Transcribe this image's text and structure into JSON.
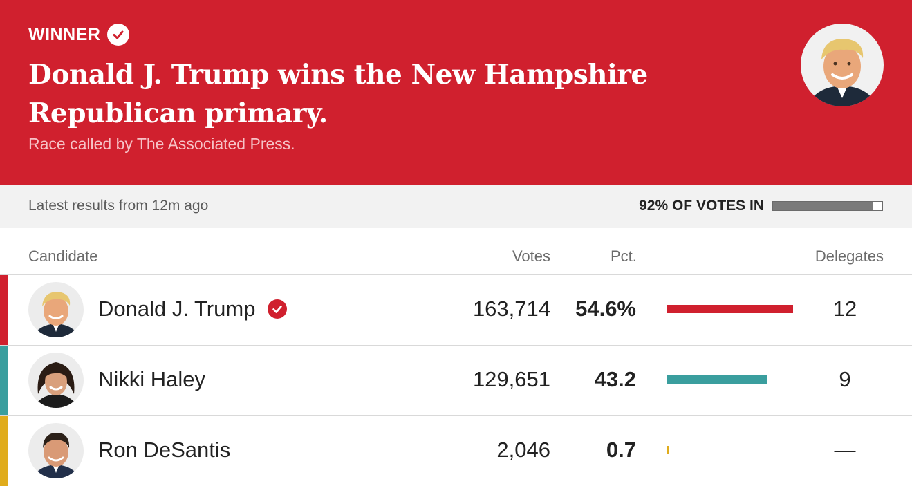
{
  "banner": {
    "winner_label": "WINNER",
    "headline": "Donald J. Trump wins the New Hampshire Republican primary.",
    "subline": "Race called by The Associated Press.",
    "background_color": "#d0202e"
  },
  "status": {
    "updated": "Latest results from 12m ago",
    "votes_in_label": "92% OF VOTES IN",
    "votes_in_fraction": 0.92
  },
  "table": {
    "headers": {
      "candidate": "Candidate",
      "votes": "Votes",
      "pct": "Pct.",
      "delegates": "Delegates"
    },
    "rows": [
      {
        "name": "Donald J. Trump",
        "votes": "163,714",
        "pct": "54.6%",
        "pct_value": 54.6,
        "delegates": "12",
        "winner": true,
        "color": "#d0202e"
      },
      {
        "name": "Nikki Haley",
        "votes": "129,651",
        "pct": "43.2",
        "pct_value": 43.2,
        "delegates": "9",
        "winner": false,
        "color": "#3a9e9e"
      },
      {
        "name": "Ron DeSantis",
        "votes": "2,046",
        "pct": "0.7",
        "pct_value": 0.7,
        "delegates": "—",
        "winner": false,
        "color": "#e0ac1c"
      }
    ]
  },
  "icons": {
    "winner_check": "check-circle-icon",
    "candidate_photos": [
      "trump-portrait",
      "haley-portrait",
      "desantis-portrait"
    ]
  }
}
